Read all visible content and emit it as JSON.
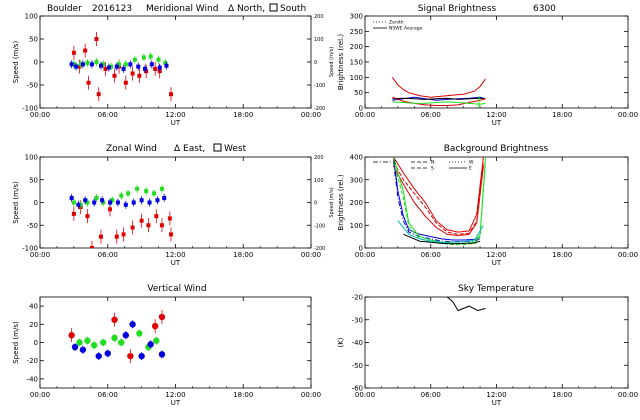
{
  "figure": {
    "station": "Boulder",
    "date": "2016123",
    "x_ticks": [
      "00:00",
      "06:00",
      "12:00",
      "18:00",
      "00:00"
    ],
    "x_tick_values": [
      0,
      6,
      12,
      18,
      24
    ],
    "x_label": "UT"
  },
  "colors": {
    "red": "#dd0000",
    "green": "#22dd22",
    "blue": "#0000dd",
    "black": "#000000"
  },
  "chart_data": [
    {
      "id": "meridional",
      "type": "scatter",
      "title": "Meridional Wind",
      "legend_text": [
        "Δ North,",
        "South"
      ],
      "xlim": [
        0,
        24
      ],
      "ylim": [
        -100,
        100
      ],
      "yticks": [
        -100,
        -50,
        0,
        50,
        100
      ],
      "ylabel": "Speed (m/s)",
      "right_axis": {
        "label": "Speed (m/s)",
        "ticks": [
          -200,
          -100,
          0,
          100,
          200
        ],
        "tick_labels": [
          "-200",
          "-100",
          "0",
          "100",
          "200"
        ]
      },
      "series": [
        {
          "name": "red",
          "color": "red",
          "marker": "square",
          "x": [
            3.0,
            3.5,
            4.0,
            4.3,
            5.0,
            5.2,
            5.8,
            6.6,
            7.0,
            7.6,
            8.2,
            8.8,
            9.4,
            10.2,
            10.6,
            11.6
          ],
          "y": [
            20,
            -10,
            25,
            -45,
            50,
            -70,
            -15,
            -30,
            -10,
            -45,
            -25,
            -30,
            -20,
            -15,
            -20,
            -70
          ]
        },
        {
          "name": "green",
          "color": "green",
          "marker": "square",
          "x": [
            3.0,
            3.6,
            4.2,
            5.0,
            5.6,
            6.3,
            7.0,
            7.6,
            8.4,
            9.2,
            9.8,
            10.5,
            11.1
          ],
          "y": [
            -5,
            -5,
            -2,
            0,
            -5,
            -10,
            -5,
            -5,
            5,
            10,
            12,
            5,
            -2
          ]
        },
        {
          "name": "blue",
          "color": "blue",
          "marker": "square",
          "x": [
            2.8,
            3.2,
            3.8,
            4.6,
            5.4,
            6.1,
            6.8,
            7.4,
            8.0,
            8.7,
            9.3,
            9.9,
            10.6,
            11.2
          ],
          "y": [
            -5,
            -10,
            -5,
            -5,
            -8,
            -12,
            -10,
            -15,
            -5,
            -10,
            -15,
            -5,
            -12,
            -8
          ]
        }
      ]
    },
    {
      "id": "zonal",
      "type": "scatter",
      "title": "Zonal Wind",
      "legend_text": [
        "Δ East,",
        "West"
      ],
      "xlim": [
        0,
        24
      ],
      "ylim": [
        -100,
        100
      ],
      "yticks": [
        -100,
        -50,
        0,
        50,
        100
      ],
      "ylabel": "Speed (m/s)",
      "right_axis": {
        "label": "Speed (m/s)",
        "ticks": [
          -200,
          -100,
          0,
          100,
          200
        ],
        "tick_labels": [
          "-200",
          "-100",
          "0",
          "100",
          "200"
        ]
      },
      "series": [
        {
          "name": "red",
          "color": "red",
          "marker": "square",
          "x": [
            3.0,
            3.6,
            4.2,
            4.6,
            5.4,
            6.2,
            6.8,
            7.4,
            8.2,
            9.0,
            9.6,
            10.3,
            10.8,
            11.5,
            11.6
          ],
          "y": [
            -25,
            -10,
            -30,
            -100,
            -75,
            -15,
            -75,
            -70,
            -55,
            -40,
            -50,
            -30,
            -50,
            -35,
            -70
          ]
        },
        {
          "name": "green",
          "color": "green",
          "marker": "square",
          "x": [
            3.0,
            3.6,
            4.2,
            5.0,
            5.6,
            6.4,
            7.2,
            7.8,
            8.6,
            9.4,
            10.1,
            10.8
          ],
          "y": [
            0,
            -5,
            0,
            10,
            0,
            5,
            15,
            20,
            30,
            25,
            20,
            30
          ]
        },
        {
          "name": "blue",
          "color": "blue",
          "marker": "square",
          "x": [
            2.8,
            3.4,
            4.0,
            4.8,
            5.5,
            6.2,
            6.9,
            7.6,
            8.3,
            9.0,
            9.7,
            10.4,
            11.0
          ],
          "y": [
            10,
            -5,
            5,
            0,
            5,
            0,
            0,
            -5,
            0,
            5,
            0,
            5,
            10
          ]
        }
      ]
    },
    {
      "id": "vertical",
      "type": "scatter",
      "title": "Vertical Wind",
      "xlim": [
        0,
        24
      ],
      "ylim": [
        -50,
        50
      ],
      "yticks": [
        -40,
        -20,
        0,
        20,
        40
      ],
      "ylabel": "Speed (m/s)",
      "series": [
        {
          "name": "red",
          "color": "red",
          "marker": "circle",
          "x": [
            2.8,
            6.6,
            8.0,
            10.2,
            10.8
          ],
          "y": [
            8,
            25,
            -15,
            18,
            28
          ]
        },
        {
          "name": "green",
          "color": "green",
          "marker": "circle",
          "x": [
            3.5,
            4.2,
            4.8,
            5.6,
            6.6,
            7.2,
            8.8,
            9.6,
            10.3
          ],
          "y": [
            0,
            2,
            -3,
            0,
            5,
            0,
            10,
            -5,
            2
          ]
        },
        {
          "name": "blue",
          "color": "blue",
          "marker": "circle",
          "x": [
            3.1,
            3.8,
            5.2,
            6.0,
            7.6,
            8.2,
            9.0,
            9.8,
            10.8
          ],
          "y": [
            -5,
            -8,
            -15,
            -12,
            8,
            20,
            -15,
            -2,
            -13
          ]
        }
      ]
    },
    {
      "id": "signal",
      "type": "line",
      "title": "Signal Brightness",
      "title_suffix": "6300",
      "xlim": [
        0,
        24
      ],
      "ylim": [
        0,
        300
      ],
      "yticks": [
        0,
        50,
        100,
        150,
        200,
        250,
        300
      ],
      "ylabel": "Brightness (rel.)",
      "legend": [
        {
          "label": "Zenith",
          "style": "dotted"
        },
        {
          "label": "NSWE Average",
          "style": "solid"
        }
      ],
      "series": [
        {
          "name": "blue",
          "color": "blue",
          "style": "solid",
          "x": [
            2.5,
            3.5,
            4.5,
            5.5,
            6.5,
            7.5,
            8.5,
            9.5,
            10.5,
            11.0
          ],
          "y": [
            25,
            30,
            35,
            30,
            25,
            28,
            30,
            32,
            35,
            30
          ]
        },
        {
          "name": "black",
          "color": "black",
          "style": "solid",
          "x": [
            2.5,
            3.5,
            4.5,
            5.5,
            6.5,
            7.5,
            8.5,
            9.5,
            10.5,
            11.0
          ],
          "y": [
            30,
            32,
            30,
            28,
            30,
            32,
            28,
            30,
            32,
            30
          ]
        },
        {
          "name": "red",
          "color": "red",
          "style": "solid",
          "x": [
            2.5,
            3.0,
            3.5,
            4.0,
            5.0,
            6.0,
            7.0,
            8.0,
            9.0,
            10.0,
            10.5,
            11.0
          ],
          "y": [
            100,
            75,
            60,
            50,
            40,
            35,
            38,
            42,
            45,
            55,
            70,
            95
          ]
        },
        {
          "name": "red2",
          "color": "red",
          "style": "solid",
          "x": [
            2.5,
            3.5,
            4.5,
            5.5,
            6.5,
            7.5,
            8.5,
            9.5,
            10.5,
            11.0
          ],
          "y": [
            35,
            22,
            15,
            10,
            8,
            8,
            10,
            18,
            25,
            30
          ]
        },
        {
          "name": "green",
          "color": "green",
          "style": "solid",
          "x": [
            2.5,
            3.5,
            4.5,
            5.5,
            6.5,
            7.5,
            8.5,
            9.5,
            10.5,
            11.0
          ],
          "y": [
            20,
            18,
            15,
            15,
            18,
            20,
            18,
            15,
            12,
            15
          ]
        },
        {
          "name": "green-spike",
          "color": "green",
          "style": "solid",
          "x": [
            10.4,
            10.4,
            10.4
          ],
          "y": [
            0,
            15,
            38
          ]
        }
      ]
    },
    {
      "id": "background",
      "type": "line",
      "title": "Background Brightness",
      "xlim": [
        0,
        24
      ],
      "ylim": [
        0,
        400
      ],
      "yticks": [
        0,
        100,
        200,
        300,
        400
      ],
      "ylabel": "Brightness (rel.)",
      "legend": [
        {
          "label": "Z",
          "style": "dashdot"
        },
        {
          "label": "N",
          "style": "dashed"
        },
        {
          "label": "S",
          "style": "dashed"
        },
        {
          "label": "W",
          "style": "dotted"
        },
        {
          "label": "E",
          "style": "solid"
        }
      ],
      "series": [
        {
          "name": "red1",
          "color": "red",
          "style": "solid",
          "x": [
            2.6,
            3.5,
            4.5,
            5.5,
            6.5,
            7.5,
            8.5,
            9.5,
            10.2,
            10.8
          ],
          "y": [
            400,
            330,
            260,
            200,
            120,
            80,
            70,
            75,
            150,
            400
          ]
        },
        {
          "name": "red2",
          "color": "red",
          "style": "dashed",
          "x": [
            2.6,
            3.5,
            4.5,
            5.5,
            6.5,
            7.5,
            8.5,
            9.5,
            10.2,
            10.8
          ],
          "y": [
            380,
            300,
            240,
            180,
            110,
            70,
            60,
            65,
            120,
            380
          ]
        },
        {
          "name": "red3",
          "color": "red",
          "style": "solid",
          "x": [
            2.6,
            3.5,
            4.5,
            5.5,
            6.5,
            7.5,
            8.5,
            9.5,
            10.2,
            10.8
          ],
          "y": [
            360,
            280,
            200,
            140,
            90,
            60,
            55,
            60,
            110,
            360
          ]
        },
        {
          "name": "blue1",
          "color": "blue",
          "style": "solid",
          "x": [
            2.6,
            3.0,
            3.5,
            4.0,
            5.0,
            6.0,
            7.0,
            8.0,
            9.0,
            10.0,
            10.5
          ],
          "y": [
            400,
            250,
            140,
            80,
            60,
            50,
            40,
            35,
            35,
            38,
            45
          ]
        },
        {
          "name": "blue2",
          "color": "blue",
          "style": "dashdot",
          "x": [
            2.6,
            3.0,
            3.5,
            4.0,
            5.0,
            6.0,
            7.0,
            8.0,
            9.0,
            10.0,
            10.5
          ],
          "y": [
            380,
            220,
            120,
            70,
            50,
            40,
            30,
            28,
            28,
            30,
            40
          ]
        },
        {
          "name": "green1",
          "color": "green",
          "style": "solid",
          "x": [
            2.6,
            3.5,
            4.0,
            5.0,
            6.0,
            7.0,
            8.0,
            9.0,
            10.0,
            10.5,
            11.0
          ],
          "y": [
            400,
            250,
            110,
            50,
            35,
            25,
            20,
            20,
            25,
            60,
            400
          ]
        },
        {
          "name": "green2",
          "color": "green",
          "style": "dashed",
          "x": [
            2.6,
            3.5,
            4.0,
            5.0,
            6.0,
            7.0,
            8.0,
            9.0,
            10.0,
            10.5,
            11.0
          ],
          "y": [
            380,
            220,
            95,
            40,
            28,
            20,
            15,
            15,
            20,
            50,
            380
          ]
        },
        {
          "name": "black1",
          "color": "black",
          "style": "solid",
          "x": [
            3.5,
            5.0,
            6.0,
            7.0,
            8.0,
            9.0,
            10.0,
            10.5
          ],
          "y": [
            60,
            30,
            25,
            20,
            18,
            20,
            22,
            30
          ]
        },
        {
          "name": "cyan1",
          "color": "cyan",
          "style": "solid",
          "x": [
            3.0,
            4.0,
            5.0,
            6.0,
            7.0,
            8.0,
            9.0,
            10.0,
            10.8
          ],
          "y": [
            120,
            60,
            40,
            30,
            25,
            25,
            28,
            35,
            100
          ]
        }
      ]
    },
    {
      "id": "sky",
      "type": "line",
      "title": "Sky Temperature",
      "xlim": [
        0,
        24
      ],
      "ylim": [
        -60,
        -20
      ],
      "yticks": [
        -60,
        -50,
        -40,
        -30,
        -20
      ],
      "ylabel": "(K)",
      "series": [
        {
          "name": "black",
          "color": "black",
          "style": "solid",
          "x": [
            7.5,
            8.0,
            8.5,
            9.5,
            10.3,
            11.0
          ],
          "y": [
            -20,
            -22,
            -26,
            -24,
            -26,
            -25
          ]
        }
      ]
    }
  ]
}
